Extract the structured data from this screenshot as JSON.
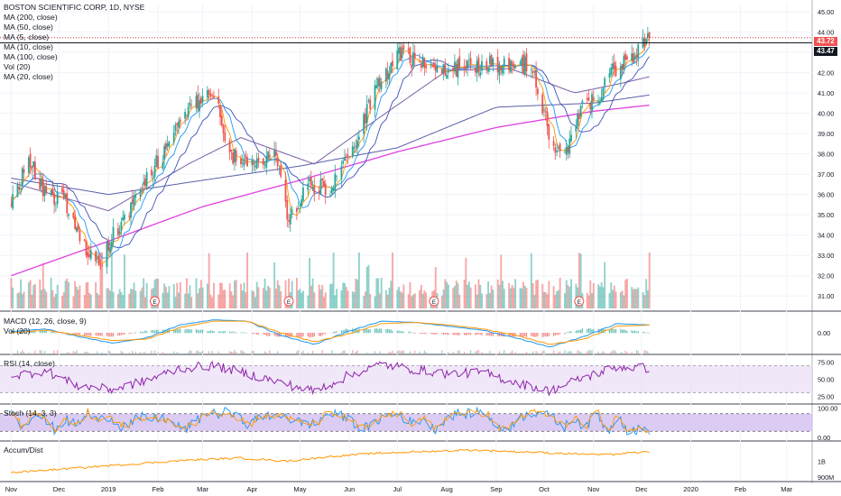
{
  "header": {
    "symbol_line": "BOSTON SCIENTIFIC CORP, 1D, NYSE"
  },
  "legend": {
    "main": [
      "MA (200, close)",
      "MA (50, close)",
      "MA (5, close)",
      "MA (10, close)",
      "MA (100, close)",
      "Vol (20)",
      "MA (20, close)"
    ],
    "macd": "MACD (12, 26, close, 9)",
    "vol": "Vol (20)",
    "rsi": "RSI (14, close)",
    "stoch": "Stoch (14, 3, 3)",
    "accum": "Accum/Dist"
  },
  "price_labels": {
    "last": "43.72",
    "line": "43.47"
  },
  "colors": {
    "up": "#26a69a",
    "down": "#ef5350",
    "ma200": "#e040e0",
    "ma50": "#7b5fa8",
    "ma100": "#5a5fa8",
    "ma20": "#3f51b5",
    "ma10": "#2196f3",
    "ma5": "#ff9800",
    "macd": "#2196f3",
    "signal": "#ff9800",
    "rsi": "#8e24aa",
    "rsi_band": "#e9ddf5",
    "stoch_band": "#d8c6f2",
    "stoch_k": "#2196f3",
    "stoch_d": "#ff9800",
    "accum": "#ff9800",
    "horizontal_line": "#b71c1c"
  },
  "chart_data": [
    {
      "type": "candlestick",
      "panel": "price",
      "title": "BOSTON SCIENTIFIC CORP, 1D, NYSE",
      "x_ticks": [
        "Nov",
        "Dec",
        "2019",
        "Feb",
        "Mar",
        "Apr",
        "May",
        "Jun",
        "Jul",
        "Aug",
        "Sep",
        "Oct",
        "Nov",
        "Dec",
        "2020",
        "Feb",
        "Mar"
      ],
      "y_ticks": [
        "45.00",
        "44.00",
        "43.00",
        "42.00",
        "41.00",
        "40.00",
        "39.00",
        "38.00",
        "37.00",
        "36.00",
        "35.00",
        "34.00",
        "33.00",
        "32.00",
        "31.00"
      ],
      "ylim": [
        30.3,
        45.4
      ],
      "horizontal_line": 43.47,
      "last_price": 43.72,
      "close_anchors": [
        {
          "date": "2018-11-01",
          "value": 35.4
        },
        {
          "date": "2018-11-12",
          "value": 37.7
        },
        {
          "date": "2018-11-22",
          "value": 36.0
        },
        {
          "date": "2018-12-05",
          "value": 35.7
        },
        {
          "date": "2018-12-24",
          "value": 32.3
        },
        {
          "date": "2019-01-04",
          "value": 34.0
        },
        {
          "date": "2019-01-18",
          "value": 35.8
        },
        {
          "date": "2019-02-04",
          "value": 38.0
        },
        {
          "date": "2019-02-20",
          "value": 40.3
        },
        {
          "date": "2019-03-04",
          "value": 40.8
        },
        {
          "date": "2019-03-12",
          "value": 40.0
        },
        {
          "date": "2019-03-18",
          "value": 38.0
        },
        {
          "date": "2019-04-03",
          "value": 37.6
        },
        {
          "date": "2019-04-15",
          "value": 38.2
        },
        {
          "date": "2019-04-24",
          "value": 34.8
        },
        {
          "date": "2019-05-08",
          "value": 36.5
        },
        {
          "date": "2019-05-20",
          "value": 36.2
        },
        {
          "date": "2019-06-04",
          "value": 38.5
        },
        {
          "date": "2019-06-18",
          "value": 41.2
        },
        {
          "date": "2019-07-02",
          "value": 43.0
        },
        {
          "date": "2019-07-15",
          "value": 42.4
        },
        {
          "date": "2019-07-29",
          "value": 42.3
        },
        {
          "date": "2019-08-12",
          "value": 42.2
        },
        {
          "date": "2019-08-26",
          "value": 42.4
        },
        {
          "date": "2019-09-09",
          "value": 42.5
        },
        {
          "date": "2019-09-23",
          "value": 42.3
        },
        {
          "date": "2019-10-01",
          "value": 40.0
        },
        {
          "date": "2019-10-07",
          "value": 38.0
        },
        {
          "date": "2019-10-14",
          "value": 38.0
        },
        {
          "date": "2019-10-24",
          "value": 40.4
        },
        {
          "date": "2019-11-04",
          "value": 40.8
        },
        {
          "date": "2019-11-14",
          "value": 42.2
        },
        {
          "date": "2019-11-25",
          "value": 42.8
        },
        {
          "date": "2019-12-06",
          "value": 43.72
        }
      ],
      "series": [
        {
          "name": "MA (200, close)",
          "anchors": [
            {
              "date": "2018-11-01",
              "value": 32.0
            },
            {
              "date": "2019-01-01",
              "value": 33.7
            },
            {
              "date": "2019-03-01",
              "value": 35.4
            },
            {
              "date": "2019-05-01",
              "value": 36.7
            },
            {
              "date": "2019-07-01",
              "value": 38.1
            },
            {
              "date": "2019-09-01",
              "value": 39.3
            },
            {
              "date": "2019-11-01",
              "value": 40.1
            },
            {
              "date": "2019-12-06",
              "value": 40.4
            }
          ]
        },
        {
          "name": "MA (100, close)",
          "anchors": [
            {
              "date": "2018-11-01",
              "value": 36.8
            },
            {
              "date": "2019-01-01",
              "value": 36.0
            },
            {
              "date": "2019-03-01",
              "value": 36.7
            },
            {
              "date": "2019-05-01",
              "value": 37.4
            },
            {
              "date": "2019-07-01",
              "value": 38.3
            },
            {
              "date": "2019-09-01",
              "value": 40.3
            },
            {
              "date": "2019-11-01",
              "value": 40.5
            },
            {
              "date": "2019-12-06",
              "value": 40.9
            }
          ]
        },
        {
          "name": "MA (50, close)",
          "anchors": [
            {
              "date": "2018-11-01",
              "value": 36.6
            },
            {
              "date": "2019-01-01",
              "value": 35.2
            },
            {
              "date": "2019-02-20",
              "value": 37.5
            },
            {
              "date": "2019-03-25",
              "value": 38.8
            },
            {
              "date": "2019-05-10",
              "value": 37.5
            },
            {
              "date": "2019-06-20",
              "value": 39.8
            },
            {
              "date": "2019-08-01",
              "value": 42.1
            },
            {
              "date": "2019-09-10",
              "value": 42.2
            },
            {
              "date": "2019-10-20",
              "value": 41.0
            },
            {
              "date": "2019-11-20",
              "value": 41.5
            },
            {
              "date": "2019-12-06",
              "value": 41.8
            }
          ]
        }
      ]
    },
    {
      "type": "line",
      "panel": "MACD",
      "title": "MACD (12, 26, close, 9)",
      "y_ticks": [
        "0.00"
      ],
      "series": [
        {
          "name": "MACD",
          "values": [
            0.1,
            0.3,
            -0.3,
            -0.8,
            -0.4,
            0.6,
            1.0,
            0.9,
            -0.2,
            -0.9,
            0.1,
            0.9,
            0.8,
            0.5,
            0.2,
            -0.4,
            -1.1,
            -0.3,
            0.7,
            0.6
          ]
        },
        {
          "name": "Signal",
          "values": [
            0.0,
            0.2,
            -0.2,
            -0.6,
            -0.5,
            0.4,
            0.9,
            0.9,
            0.0,
            -0.7,
            -0.1,
            0.7,
            0.8,
            0.6,
            0.3,
            -0.2,
            -0.9,
            -0.5,
            0.5,
            0.6
          ]
        }
      ]
    },
    {
      "type": "line",
      "panel": "RSI",
      "title": "RSI (14, close)",
      "y_ticks": [
        "75.00",
        "50.00",
        "25.00"
      ],
      "levels": [
        70,
        30
      ],
      "ylim": [
        15,
        85
      ],
      "values": [
        55,
        62,
        40,
        35,
        48,
        66,
        70,
        58,
        45,
        32,
        55,
        72,
        64,
        58,
        60,
        45,
        33,
        52,
        68,
        66
      ]
    },
    {
      "type": "line",
      "panel": "Stoch",
      "title": "Stoch (14, 3, 3)",
      "y_ticks": [
        "100.00",
        "0.00"
      ],
      "levels": [
        80,
        20
      ],
      "ylim": [
        -10,
        110
      ]
    },
    {
      "type": "line",
      "panel": "Accum/Dist",
      "title": "Accum/Dist",
      "y_ticks": [
        "1B",
        "900M"
      ],
      "values": [
        0.93,
        0.95,
        0.97,
        0.99,
        1.01,
        1.02,
        1.0,
        1.03,
        1.05,
        1.06,
        1.07,
        1.06,
        1.05,
        1.04,
        1.06
      ]
    }
  ]
}
